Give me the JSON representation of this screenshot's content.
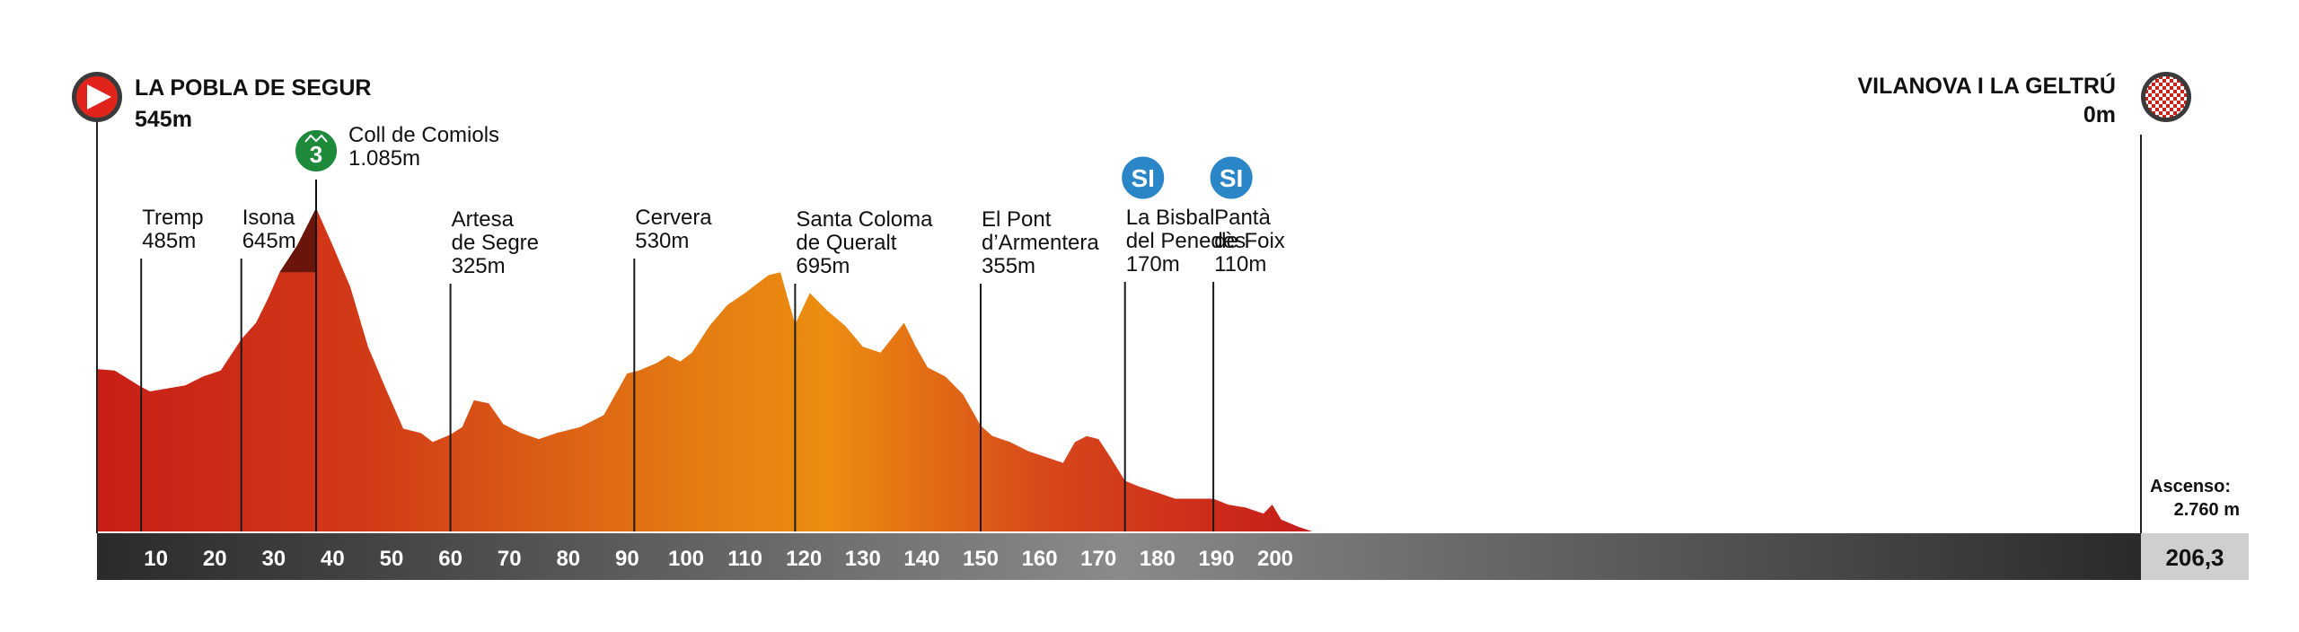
{
  "chart_data": {
    "type": "area",
    "title": "",
    "xlabel": "",
    "ylabel": "",
    "xlim": [
      0,
      210
    ],
    "ylim": [
      0,
      1150
    ],
    "x_ticks": [
      10,
      20,
      30,
      40,
      50,
      60,
      70,
      80,
      90,
      100,
      110,
      120,
      130,
      140,
      150,
      160,
      170,
      180,
      190,
      200
    ],
    "total_distance": "206,3",
    "ascent": {
      "label": "Ascenso:",
      "value": "2.760 m"
    },
    "start": {
      "name": "LA POBLA DE SEGUR",
      "elevation_label": "545m",
      "km": 0,
      "elevation": 545
    },
    "finish": {
      "name": "VILANOVA I LA GELTRÚ",
      "elevation_label": "0m",
      "km": 206.3,
      "elevation": 0
    },
    "profile": {
      "x": [
        0,
        3,
        7.5,
        9,
        12,
        15,
        18,
        21,
        24.5,
        27,
        29,
        31,
        34,
        37.2,
        40,
        43,
        46,
        49,
        52,
        55,
        57,
        60,
        62,
        64,
        66.5,
        69,
        72,
        75,
        78,
        82,
        86,
        90,
        92,
        95,
        97,
        99,
        101,
        104,
        107,
        110,
        112,
        114,
        116,
        118.5,
        121,
        124,
        127,
        130,
        133,
        135,
        137,
        139,
        141,
        144,
        147,
        150,
        152,
        155,
        158,
        161,
        164,
        166,
        168,
        170,
        172,
        174.5,
        177,
        180,
        183,
        186,
        189.5,
        192,
        195,
        198,
        199.5,
        201,
        204,
        206.3
      ],
      "y": [
        545,
        540,
        485,
        470,
        480,
        490,
        520,
        540,
        645,
        700,
        780,
        870,
        960,
        1085,
        960,
        820,
        620,
        480,
        345,
        330,
        300,
        325,
        350,
        440,
        430,
        360,
        330,
        310,
        330,
        350,
        390,
        530,
        540,
        565,
        590,
        570,
        600,
        690,
        760,
        800,
        830,
        860,
        870,
        695,
        800,
        740,
        690,
        620,
        600,
        650,
        700,
        620,
        550,
        520,
        460,
        355,
        320,
        300,
        270,
        250,
        230,
        300,
        320,
        310,
        250,
        170,
        150,
        130,
        110,
        110,
        110,
        90,
        80,
        60,
        90,
        40,
        15,
        0
      ]
    },
    "waypoints": [
      {
        "lines": [
          "Tremp",
          "485m"
        ],
        "km": 7.5,
        "elevation": 485
      },
      {
        "lines": [
          "Isona",
          "645m"
        ],
        "km": 24.5,
        "elevation": 645
      },
      {
        "lines": [
          "Coll de Comiols",
          "1.085m"
        ],
        "km": 37.2,
        "elevation": 1085,
        "category": "3"
      },
      {
        "lines": [
          "Artesa",
          "de Segre",
          "325m"
        ],
        "km": 60,
        "elevation": 325
      },
      {
        "lines": [
          "Cervera",
          "530m"
        ],
        "km": 91.2,
        "elevation": 530
      },
      {
        "lines": [
          "Santa Coloma",
          "de Queralt",
          "695m"
        ],
        "km": 118.5,
        "elevation": 695
      },
      {
        "lines": [
          "El Pont",
          "d’Armentera",
          "355m"
        ],
        "km": 150,
        "elevation": 355
      },
      {
        "lines": [
          "La Bisbal",
          "del Penedès",
          "170m"
        ],
        "km": 174.5,
        "elevation": 170,
        "badge": "SI"
      },
      {
        "lines": [
          "Pantà",
          "de Foix",
          "110m"
        ],
        "km": 189.5,
        "elevation": 110,
        "badge": "SI"
      }
    ]
  },
  "colors": {
    "profile_red": "#c8201a",
    "profile_orange": "#ea8a10",
    "climb_dark": "#6a150c",
    "axis_bar": "#2b2b2b",
    "start_icon": "#e0241b",
    "climb_badge": "#1f8a3a",
    "sprint_badge": "#2a86c6",
    "total_box": "#cfcfcf"
  },
  "icons": {
    "start": "play-triangle-icon",
    "finish": "checkered-flag-icon",
    "climb": "mountain-category-icon",
    "sprint": "intermediate-sprint-icon"
  }
}
